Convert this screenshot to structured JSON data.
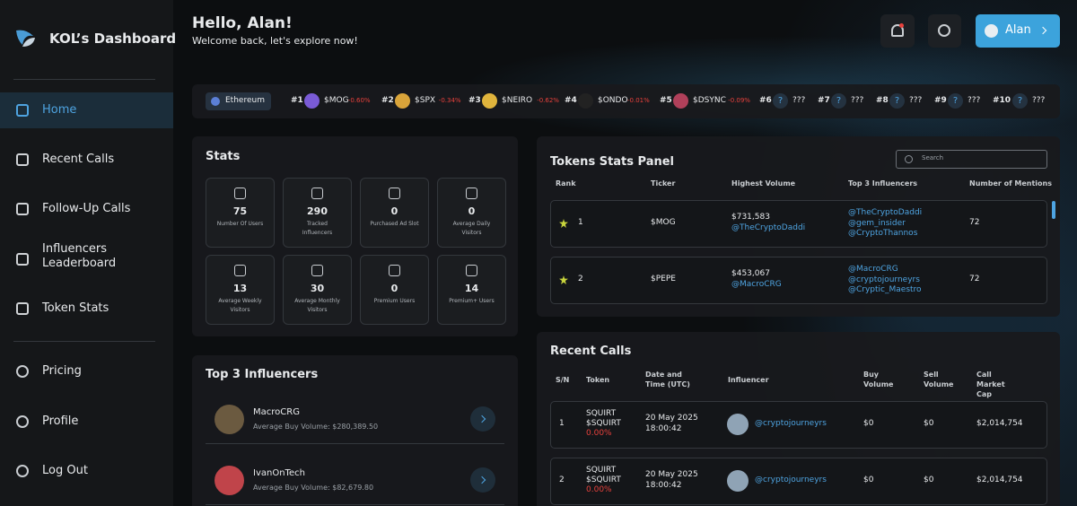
{
  "sidebar": {
    "brand": "KOL’s Dashboard",
    "nav": [
      "Home",
      "Recent Calls",
      "Follow-Up Calls",
      "Influencers Leaderboard",
      "Token Stats"
    ],
    "nav2": [
      "Pricing",
      "Profile",
      "Log Out"
    ]
  },
  "header": {
    "title": "Hello, Alan!",
    "subtitle": "Welcome back, let's explore now!",
    "user": "Alan"
  },
  "ticker": {
    "chain": "Ethereum",
    "items": [
      {
        "rank": "#1",
        "icon": "",
        "name": "$MOG",
        "change": "-0.60%"
      },
      {
        "rank": "#2",
        "icon": "",
        "name": "$SPX",
        "change": "-0.34%"
      },
      {
        "rank": "#3",
        "icon": "",
        "name": "$NEIRO",
        "change": "-0.62%"
      },
      {
        "rank": "#4",
        "icon": "",
        "name": "$ONDO",
        "change": "-0.01%"
      },
      {
        "rank": "#5",
        "icon": "",
        "name": "$DSYNC",
        "change": "-0.09%"
      },
      {
        "rank": "#6",
        "icon": "?",
        "name": "???",
        "change": ""
      },
      {
        "rank": "#7",
        "icon": "?",
        "name": "???",
        "change": ""
      },
      {
        "rank": "#8",
        "icon": "?",
        "name": "???",
        "change": ""
      },
      {
        "rank": "#9",
        "icon": "?",
        "name": "???",
        "change": ""
      },
      {
        "rank": "#10",
        "icon": "?",
        "name": "???",
        "change": ""
      }
    ]
  },
  "stats": {
    "title": "Stats",
    "items": [
      {
        "value": 75,
        "label": "Number Of Users"
      },
      {
        "value": 290,
        "label": "Tracked Influencers"
      },
      {
        "value": 0,
        "label": "Purchased Ad Slot"
      },
      {
        "value": 0,
        "label": "Average Daily Visitors"
      },
      {
        "value": 13,
        "label": "Average Weekly Visitors"
      },
      {
        "value": 30,
        "label": "Average Monthly Visitors"
      },
      {
        "value": 0,
        "label": "Premium Users"
      },
      {
        "value": 14,
        "label": "Premium+ Users"
      }
    ]
  },
  "top_influencers": {
    "title": "Top 3 Influencers",
    "items": [
      {
        "name": "MacroCRG",
        "detail": "Average Buy Volume: $280,389.50"
      },
      {
        "name": "IvanOnTech",
        "detail": "Average Buy Volume: $82,679.80"
      }
    ]
  },
  "tokens": {
    "title": "Tokens Stats Panel",
    "search": "Search",
    "columns": [
      "Rank",
      "Ticker",
      "Highest Volume",
      "Top 3 Influencers",
      "Number of Mentions"
    ],
    "rows": [
      {
        "rank": 1,
        "ticker": "$MOG",
        "volume": "$731,583",
        "volume_by": "@TheCryptoDaddi",
        "influencers": [
          "@TheCryptoDaddi",
          "@gem_insider",
          "@CryptoThannos"
        ],
        "mentions": 72
      },
      {
        "rank": 2,
        "ticker": "$PEPE",
        "volume": "$453,067",
        "volume_by": "@MacroCRG",
        "influencers": [
          "@MacroCRG",
          "@cryptojourneyrs",
          "@Cryptic_Maestro"
        ],
        "mentions": 72
      }
    ]
  },
  "recent_calls": {
    "title": "Recent Calls",
    "columns": [
      "S/N",
      "Token",
      "Date and Time (UTC)",
      "Influencer",
      "Buy Volume",
      "Sell Volume",
      "Call Market Cap"
    ],
    "rows": [
      {
        "sn": 1,
        "token": "SQUIRT",
        "symbol": "$SQUIRT",
        "change": "0.00%",
        "date": "20 May 2025",
        "time": "18:00:42",
        "influencer": "@cryptojourneyrs",
        "buy": "$0",
        "sell": "$0",
        "mcap": "$2,014,754"
      },
      {
        "sn": 2,
        "token": "SQUIRT",
        "symbol": "$SQUIRT",
        "change": "0.00%",
        "date": "20 May 2025",
        "time": "18:00:42",
        "influencer": "@cryptojourneyrs",
        "buy": "$0",
        "sell": "$0",
        "mcap": "$2,014,754"
      }
    ]
  }
}
